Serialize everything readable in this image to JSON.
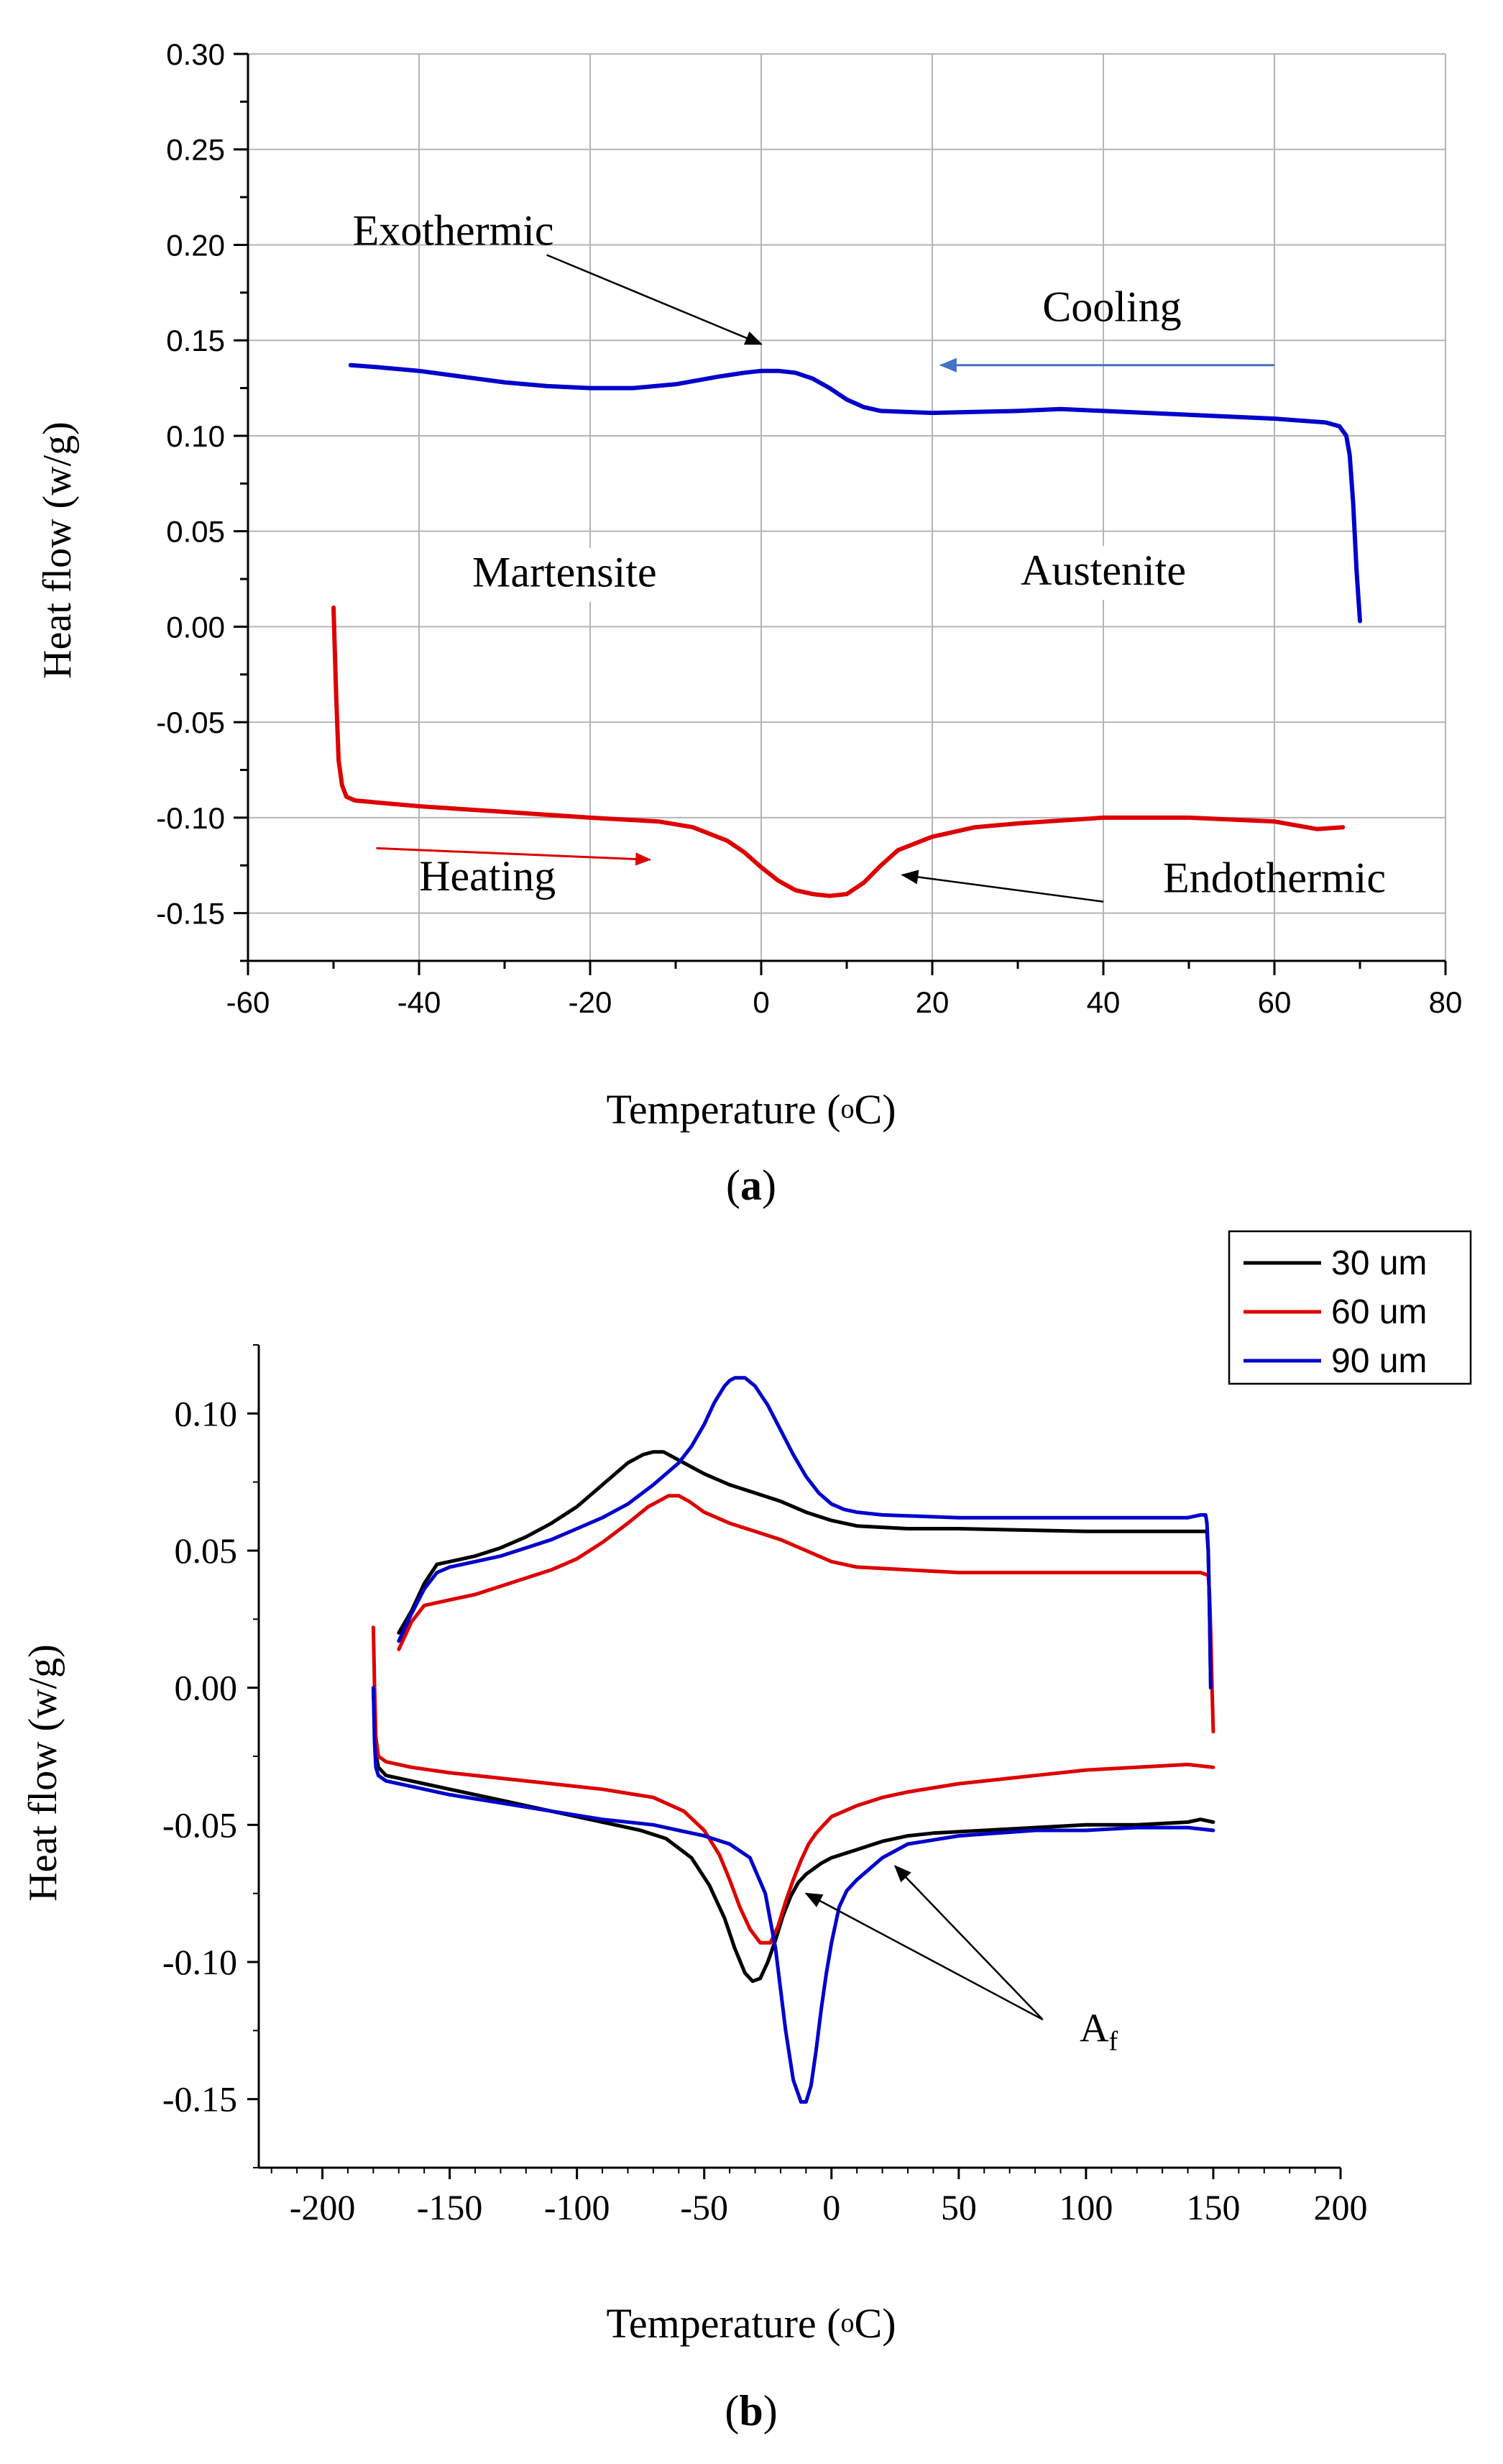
{
  "chart_data": [
    {
      "type": "line",
      "panel_label": "a",
      "xlabel": "Temperature",
      "xlabel_unit_sup": "o",
      "xlabel_unit": "C",
      "ylabel": "Heat flow (w/g)",
      "xlim": [
        -60,
        80
      ],
      "ylim": [
        -0.175,
        0.3
      ],
      "xticks": [
        -60,
        -40,
        -20,
        0,
        20,
        40,
        60,
        80
      ],
      "yticks": [
        -0.15,
        -0.1,
        -0.05,
        0.0,
        0.05,
        0.1,
        0.15,
        0.2,
        0.25,
        0.3
      ],
      "ytick_labels": [
        "-0.15",
        "-0.10",
        "-0.05",
        "0.00",
        "0.05",
        "0.10",
        "0.15",
        "0.20",
        "0.25",
        "0.30"
      ],
      "grid": true,
      "series": [
        {
          "name": "Cooling",
          "color": "#0000cc",
          "x": [
            70,
            69.6,
            69.2,
            68.8,
            68.4,
            67.6,
            66,
            60,
            50,
            40,
            35,
            30,
            20,
            14,
            12,
            10,
            8,
            6,
            4,
            2,
            0,
            -2,
            -5,
            -10,
            -15,
            -20,
            -25,
            -30,
            -35,
            -40,
            -45,
            -48
          ],
          "y": [
            0.003,
            0.03,
            0.065,
            0.09,
            0.1,
            0.105,
            0.107,
            0.109,
            0.111,
            0.113,
            0.114,
            0.113,
            0.112,
            0.113,
            0.115,
            0.119,
            0.125,
            0.13,
            0.133,
            0.134,
            0.134,
            0.133,
            0.131,
            0.127,
            0.125,
            0.125,
            0.126,
            0.128,
            0.131,
            0.134,
            0.136,
            0.137
          ]
        },
        {
          "name": "Heating",
          "color": "#dd0000",
          "x": [
            -50,
            -49.7,
            -49.4,
            -49,
            -48.5,
            -47.5,
            -45,
            -40,
            -30,
            -20,
            -12,
            -8,
            -4,
            -2,
            0,
            2,
            4,
            6,
            8,
            10,
            12,
            14,
            16,
            20,
            25,
            30,
            40,
            50,
            60,
            65,
            68
          ],
          "y": [
            0.01,
            -0.035,
            -0.07,
            -0.083,
            -0.089,
            -0.091,
            -0.092,
            -0.094,
            -0.097,
            -0.1,
            -0.102,
            -0.105,
            -0.112,
            -0.118,
            -0.126,
            -0.133,
            -0.138,
            -0.14,
            -0.141,
            -0.14,
            -0.134,
            -0.125,
            -0.117,
            -0.11,
            -0.105,
            -0.103,
            -0.1,
            -0.1,
            -0.102,
            -0.106,
            -0.105
          ]
        }
      ],
      "annotations": [
        {
          "text": "Exothermic",
          "x": -36,
          "y": 0.2,
          "arrow_to": [
            0,
            0.148
          ]
        },
        {
          "text": "Cooling",
          "x": 41,
          "y": 0.16,
          "arrow_from": [
            60,
            0.137
          ],
          "arrow_to": [
            21,
            0.137
          ],
          "arrow_color": "#4472c4"
        },
        {
          "text": "Martensite",
          "x": -23,
          "y": 0.021
        },
        {
          "text": "Austenite",
          "x": 40,
          "y": 0.022
        },
        {
          "text": "Heating",
          "x": -32,
          "y": -0.138,
          "arrow_from": [
            -45,
            -0.116
          ],
          "arrow_to": [
            -13,
            -0.122
          ],
          "arrow_color": "#dd0000"
        },
        {
          "text": "Endothermic",
          "x": 60,
          "y": -0.139,
          "arrow_from": [
            40,
            -0.144
          ],
          "arrow_to": [
            16.5,
            -0.13
          ]
        }
      ]
    },
    {
      "type": "line",
      "panel_label": "b",
      "xlabel": "Temperature",
      "xlabel_unit_sup": "o",
      "xlabel_unit": "C",
      "ylabel": "Heat flow (w/g)",
      "xlim": [
        -225,
        200
      ],
      "ylim": [
        -0.175,
        0.125
      ],
      "xticks": [
        -200,
        -150,
        -100,
        -50,
        0,
        50,
        100,
        150,
        200
      ],
      "yticks": [
        -0.15,
        -0.1,
        -0.05,
        0.0,
        0.05,
        0.1
      ],
      "ytick_labels": [
        "-0.15",
        "-0.10",
        "-0.05",
        "0.00",
        "0.05",
        "0.10"
      ],
      "grid": false,
      "legend_position": "top-right",
      "series": [
        {
          "name": "30 um",
          "color": "#000000",
          "cooling": {
            "x": [
              149,
              148.5,
              148,
              147.5,
              145,
              120,
              100,
              50,
              30,
              10,
              0,
              -10,
              -20,
              -30,
              -40,
              -50,
              -58,
              -62,
              -66,
              -70,
              -74,
              -80,
              -90,
              -100,
              -110,
              -120,
              -130,
              -140,
              -150,
              -155,
              -160,
              -165,
              -170
            ],
            "y": [
              0.0,
              0.03,
              0.05,
              0.057,
              0.057,
              0.057,
              0.057,
              0.058,
              0.058,
              0.059,
              0.061,
              0.064,
              0.068,
              0.071,
              0.074,
              0.078,
              0.082,
              0.084,
              0.086,
              0.086,
              0.085,
              0.082,
              0.074,
              0.066,
              0.06,
              0.055,
              0.051,
              0.048,
              0.046,
              0.045,
              0.038,
              0.028,
              0.02
            ]
          },
          "heating": {
            "x": [
              -180,
              -179.5,
              -179,
              -178,
              -175,
              -165,
              -150,
              -130,
              -110,
              -90,
              -75,
              -65,
              -55,
              -48,
              -42,
              -38,
              -34,
              -31,
              -28,
              -25,
              -22,
              -19,
              -16,
              -13,
              -10,
              -7,
              -4,
              0,
              10,
              20,
              30,
              40,
              60,
              80,
              100,
              120,
              140,
              145,
              150
            ],
            "y": [
              0.0,
              -0.015,
              -0.024,
              -0.029,
              -0.032,
              -0.034,
              -0.037,
              -0.041,
              -0.045,
              -0.049,
              -0.052,
              -0.055,
              -0.062,
              -0.072,
              -0.084,
              -0.095,
              -0.104,
              -0.107,
              -0.106,
              -0.1,
              -0.092,
              -0.083,
              -0.076,
              -0.071,
              -0.068,
              -0.066,
              -0.064,
              -0.062,
              -0.059,
              -0.056,
              -0.054,
              -0.053,
              -0.052,
              -0.051,
              -0.05,
              -0.05,
              -0.049,
              -0.048,
              -0.049
            ]
          }
        },
        {
          "name": "60 um",
          "color": "#dd0000",
          "cooling": {
            "x": [
              150,
              149.5,
              149,
              148.5,
              148,
              145,
              120,
              100,
              50,
              30,
              10,
              0,
              -10,
              -20,
              -30,
              -40,
              -50,
              -56,
              -60,
              -64,
              -68,
              -72,
              -80,
              -90,
              -100,
              -110,
              -120,
              -130,
              -140,
              -150,
              -160,
              -165,
              -170
            ],
            "y": [
              -0.016,
              0.0,
              0.02,
              0.035,
              0.041,
              0.042,
              0.042,
              0.042,
              0.042,
              0.043,
              0.044,
              0.046,
              0.05,
              0.054,
              0.057,
              0.06,
              0.064,
              0.068,
              0.07,
              0.07,
              0.068,
              0.066,
              0.06,
              0.053,
              0.047,
              0.043,
              0.04,
              0.037,
              0.034,
              0.032,
              0.03,
              0.024,
              0.014
            ]
          },
          "heating": {
            "x": [
              -180,
              -179.5,
              -179,
              -178,
              -175,
              -165,
              -150,
              -130,
              -110,
              -90,
              -70,
              -58,
              -50,
              -44,
              -40,
              -36,
              -32,
              -28,
              -24,
              -21,
              -18,
              -15,
              -12,
              -9,
              -6,
              -3,
              0,
              10,
              20,
              30,
              50,
              80,
              100,
              120,
              140,
              150
            ],
            "y": [
              0.022,
              0.0,
              -0.018,
              -0.025,
              -0.027,
              -0.029,
              -0.031,
              -0.033,
              -0.035,
              -0.037,
              -0.04,
              -0.045,
              -0.052,
              -0.061,
              -0.07,
              -0.08,
              -0.088,
              -0.093,
              -0.093,
              -0.087,
              -0.078,
              -0.07,
              -0.063,
              -0.057,
              -0.053,
              -0.05,
              -0.047,
              -0.043,
              -0.04,
              -0.038,
              -0.035,
              -0.032,
              -0.03,
              -0.029,
              -0.028,
              -0.029
            ]
          }
        },
        {
          "name": "90 um",
          "color": "#0000cc",
          "cooling": {
            "x": [
              149,
              148.5,
              148,
              147.5,
              147,
              145,
              140,
              120,
              100,
              50,
              20,
              10,
              5,
              0,
              -5,
              -10,
              -15,
              -20,
              -25,
              -30,
              -34,
              -38,
              -40,
              -42,
              -46,
              -50,
              -55,
              -60,
              -70,
              -80,
              -90,
              -100,
              -110,
              -120,
              -130,
              -140,
              -150,
              -155,
              -160,
              -165,
              -170
            ],
            "y": [
              0.0,
              0.03,
              0.05,
              0.06,
              0.063,
              0.063,
              0.062,
              0.062,
              0.062,
              0.062,
              0.063,
              0.064,
              0.065,
              0.067,
              0.071,
              0.077,
              0.085,
              0.094,
              0.103,
              0.11,
              0.113,
              0.113,
              0.112,
              0.11,
              0.104,
              0.096,
              0.088,
              0.082,
              0.074,
              0.067,
              0.062,
              0.058,
              0.054,
              0.051,
              0.048,
              0.046,
              0.044,
              0.042,
              0.036,
              0.027,
              0.017
            ]
          },
          "heating": {
            "x": [
              -180,
              -179.5,
              -179,
              -178,
              -175,
              -165,
              -150,
              -130,
              -110,
              -90,
              -70,
              -60,
              -50,
              -40,
              -32,
              -26,
              -22,
              -18,
              -15,
              -12,
              -10,
              -8,
              -6,
              -4,
              -2,
              0,
              3,
              6,
              10,
              15,
              20,
              30,
              50,
              80,
              100,
              120,
              140,
              150
            ],
            "y": [
              0.0,
              -0.02,
              -0.029,
              -0.032,
              -0.034,
              -0.036,
              -0.039,
              -0.042,
              -0.045,
              -0.048,
              -0.05,
              -0.052,
              -0.054,
              -0.057,
              -0.062,
              -0.075,
              -0.095,
              -0.125,
              -0.143,
              -0.151,
              -0.151,
              -0.145,
              -0.132,
              -0.117,
              -0.104,
              -0.093,
              -0.08,
              -0.074,
              -0.07,
              -0.066,
              -0.062,
              -0.057,
              -0.054,
              -0.052,
              -0.052,
              -0.051,
              -0.051,
              -0.052
            ]
          }
        }
      ],
      "annotation": {
        "text": "A",
        "subscript": "f",
        "x": 105,
        "y": -0.129,
        "arrows_from": [
          [
            83,
            -0.121
          ],
          [
            83,
            -0.121
          ]
        ],
        "arrows_to": [
          [
            -10,
            -0.075
          ],
          [
            25,
            -0.065
          ]
        ]
      }
    }
  ]
}
